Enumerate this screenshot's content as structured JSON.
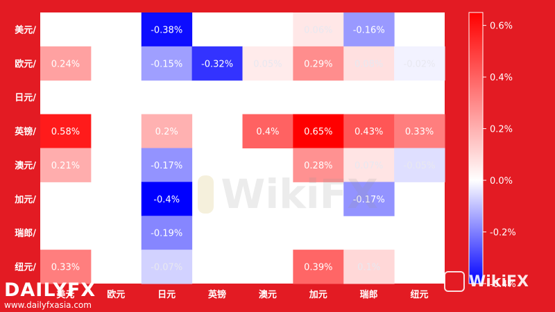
{
  "chart_data": {
    "type": "heatmap",
    "rows": [
      "美元/",
      "欧元/",
      "日元/",
      "英镑/",
      "澳元/",
      "加元/",
      "瑞郎/",
      "纽元/"
    ],
    "columns": [
      "美元",
      "欧元",
      "日元",
      "英镑",
      "澳元",
      "加元",
      "瑞郎",
      "纽元"
    ],
    "cells": [
      {
        "row": 0,
        "col": 2,
        "value": -0.38,
        "label": "-0.38%"
      },
      {
        "row": 0,
        "col": 5,
        "value": 0.06,
        "label": "0.06%"
      },
      {
        "row": 0,
        "col": 6,
        "value": -0.16,
        "label": "-0.16%"
      },
      {
        "row": 1,
        "col": 0,
        "value": 0.24,
        "label": "0.24%"
      },
      {
        "row": 1,
        "col": 2,
        "value": -0.15,
        "label": "-0.15%"
      },
      {
        "row": 1,
        "col": 3,
        "value": -0.32,
        "label": "-0.32%"
      },
      {
        "row": 1,
        "col": 4,
        "value": 0.05,
        "label": "0.05%"
      },
      {
        "row": 1,
        "col": 5,
        "value": 0.29,
        "label": "0.29%"
      },
      {
        "row": 1,
        "col": 6,
        "value": 0.08,
        "label": "0.08%"
      },
      {
        "row": 1,
        "col": 7,
        "value": -0.02,
        "label": "-0.02%"
      },
      {
        "row": 3,
        "col": 0,
        "value": 0.58,
        "label": "0.58%"
      },
      {
        "row": 3,
        "col": 2,
        "value": 0.2,
        "label": "0.2%"
      },
      {
        "row": 3,
        "col": 4,
        "value": 0.4,
        "label": "0.4%"
      },
      {
        "row": 3,
        "col": 5,
        "value": 0.65,
        "label": "0.65%"
      },
      {
        "row": 3,
        "col": 6,
        "value": 0.43,
        "label": "0.43%"
      },
      {
        "row": 3,
        "col": 7,
        "value": 0.33,
        "label": "0.33%"
      },
      {
        "row": 4,
        "col": 0,
        "value": 0.21,
        "label": "0.21%"
      },
      {
        "row": 4,
        "col": 2,
        "value": -0.17,
        "label": "-0.17%"
      },
      {
        "row": 4,
        "col": 5,
        "value": 0.28,
        "label": "0.28%"
      },
      {
        "row": 4,
        "col": 6,
        "value": 0.07,
        "label": "0.07%"
      },
      {
        "row": 4,
        "col": 7,
        "value": -0.05,
        "label": "-0.05%"
      },
      {
        "row": 5,
        "col": 2,
        "value": -0.4,
        "label": "-0.4%"
      },
      {
        "row": 5,
        "col": 6,
        "value": -0.17,
        "label": "-0.17%"
      },
      {
        "row": 6,
        "col": 2,
        "value": -0.19,
        "label": "-0.19%"
      },
      {
        "row": 7,
        "col": 0,
        "value": 0.33,
        "label": "0.33%"
      },
      {
        "row": 7,
        "col": 2,
        "value": -0.07,
        "label": "-0.07%"
      },
      {
        "row": 7,
        "col": 5,
        "value": 0.39,
        "label": "0.39%"
      },
      {
        "row": 7,
        "col": 6,
        "value": 0.1,
        "label": "0.1%"
      }
    ],
    "colorbar": {
      "min": -0.4,
      "max": 0.65,
      "ticks": [
        0.6,
        0.4,
        0.2,
        0.0,
        -0.2,
        -0.4
      ],
      "tick_labels": [
        "0.6%",
        "0.4%",
        "0.2%",
        "0.0%",
        "-0.2%",
        "-0.4%"
      ],
      "colors": {
        "negative": "#0000ff",
        "zero": "#ffffff",
        "positive": "#ff0000"
      }
    }
  },
  "colors": {
    "background": "#e31b23",
    "empty_cell": "#ffffff"
  },
  "branding": {
    "name": "DAILYFX",
    "url": "www.dailyfxasia.com",
    "watermark": "WikiFX",
    "corner_watermark": "WikiFX"
  }
}
